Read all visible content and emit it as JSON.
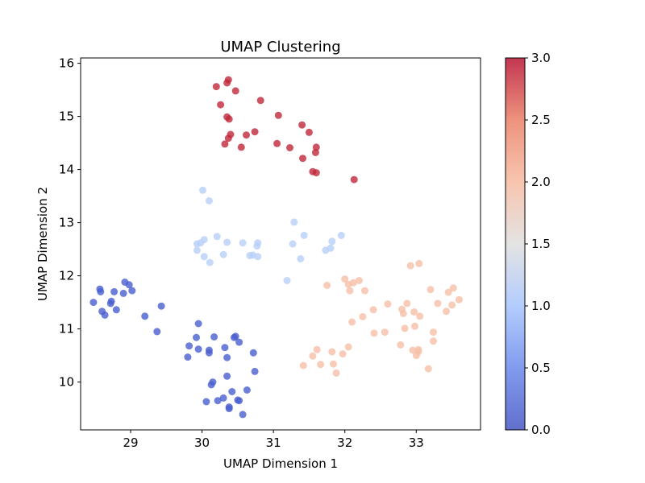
{
  "chart_data": {
    "type": "scatter",
    "title": "UMAP Clustering",
    "xlabel": "UMAP Dimension 1",
    "ylabel": "UMAP Dimension 2",
    "xlim": [
      28.3,
      33.9
    ],
    "ylim": [
      9.1,
      16.1
    ],
    "x_ticks": [
      "29",
      "30",
      "31",
      "32",
      "33"
    ],
    "y_ticks": [
      "10",
      "11",
      "12",
      "13",
      "14",
      "15",
      "16"
    ],
    "grid": false,
    "colormap": "coolwarm",
    "colorbar": {
      "range": [
        0.0,
        3.0
      ],
      "ticks": [
        "0.0",
        "0.5",
        "1.0",
        "1.5",
        "2.0",
        "2.5",
        "3.0"
      ]
    },
    "series": [
      {
        "cluster": 0,
        "color": "#4a5fd0",
        "points": [
          [
            28.48,
            11.5
          ],
          [
            28.57,
            11.75
          ],
          [
            28.58,
            11.7
          ],
          [
            28.6,
            11.33
          ],
          [
            28.64,
            11.26
          ],
          [
            28.72,
            11.48
          ],
          [
            28.73,
            11.52
          ],
          [
            28.77,
            11.7
          ],
          [
            28.8,
            11.36
          ],
          [
            28.9,
            11.67
          ],
          [
            28.92,
            11.88
          ],
          [
            28.98,
            11.83
          ],
          [
            29.02,
            11.72
          ],
          [
            29.2,
            11.24
          ],
          [
            29.37,
            10.95
          ],
          [
            29.43,
            11.43
          ],
          [
            29.82,
            10.68
          ],
          [
            29.8,
            10.47
          ],
          [
            29.92,
            10.84
          ],
          [
            29.95,
            11.1
          ],
          [
            29.95,
            10.62
          ],
          [
            30.1,
            10.6
          ],
          [
            30.1,
            10.55
          ],
          [
            30.17,
            10.85
          ],
          [
            30.32,
            10.65
          ],
          [
            30.35,
            10.46
          ],
          [
            30.45,
            10.84
          ],
          [
            30.47,
            10.86
          ],
          [
            30.52,
            10.75
          ],
          [
            30.72,
            10.55
          ],
          [
            30.74,
            10.2
          ],
          [
            30.13,
            9.95
          ],
          [
            30.15,
            10.0
          ],
          [
            30.35,
            10.11
          ],
          [
            30.06,
            9.63
          ],
          [
            30.22,
            9.65
          ],
          [
            30.3,
            9.7
          ],
          [
            30.38,
            9.53
          ],
          [
            30.38,
            9.5
          ],
          [
            30.42,
            9.82
          ],
          [
            30.5,
            9.66
          ],
          [
            30.52,
            9.65
          ],
          [
            30.57,
            9.39
          ],
          [
            30.63,
            9.85
          ]
        ]
      },
      {
        "cluster": 1,
        "color": "#b8cff8",
        "points": [
          [
            30.01,
            13.61
          ],
          [
            30.1,
            13.41
          ],
          [
            29.93,
            12.6
          ],
          [
            29.93,
            12.48
          ],
          [
            29.98,
            12.62
          ],
          [
            30.03,
            12.68
          ],
          [
            30.03,
            12.36
          ],
          [
            30.11,
            12.25
          ],
          [
            30.21,
            12.74
          ],
          [
            30.3,
            12.4
          ],
          [
            30.35,
            12.63
          ],
          [
            30.57,
            12.62
          ],
          [
            30.67,
            12.38
          ],
          [
            30.71,
            12.39
          ],
          [
            30.77,
            12.56
          ],
          [
            30.78,
            12.62
          ],
          [
            30.78,
            12.36
          ],
          [
            31.19,
            11.91
          ],
          [
            31.27,
            12.6
          ],
          [
            31.29,
            13.01
          ],
          [
            31.38,
            12.32
          ],
          [
            31.43,
            12.76
          ],
          [
            31.73,
            12.48
          ],
          [
            31.8,
            12.52
          ],
          [
            31.82,
            12.65
          ],
          [
            31.95,
            12.76
          ]
        ]
      },
      {
        "cluster": 2,
        "color": "#f6bfa6",
        "points": [
          [
            31.42,
            10.31
          ],
          [
            31.55,
            10.49
          ],
          [
            31.61,
            10.61
          ],
          [
            31.66,
            10.33
          ],
          [
            31.75,
            11.82
          ],
          [
            31.82,
            10.57
          ],
          [
            31.84,
            10.34
          ],
          [
            31.88,
            10.17
          ],
          [
            31.97,
            10.53
          ],
          [
            32.0,
            11.94
          ],
          [
            32.05,
            11.84
          ],
          [
            32.05,
            10.66
          ],
          [
            32.07,
            11.72
          ],
          [
            32.1,
            11.13
          ],
          [
            32.12,
            11.87
          ],
          [
            32.2,
            11.91
          ],
          [
            32.25,
            11.23
          ],
          [
            32.28,
            11.72
          ],
          [
            32.4,
            11.36
          ],
          [
            32.41,
            10.92
          ],
          [
            32.56,
            10.94
          ],
          [
            32.6,
            11.47
          ],
          [
            32.78,
            10.7
          ],
          [
            32.8,
            11.37
          ],
          [
            32.82,
            11.29
          ],
          [
            32.84,
            11.01
          ],
          [
            32.87,
            11.48
          ],
          [
            32.92,
            12.19
          ],
          [
            32.95,
            10.6
          ],
          [
            32.97,
            11.32
          ],
          [
            32.98,
            11.05
          ],
          [
            33.0,
            10.5
          ],
          [
            33.03,
            10.61
          ],
          [
            33.03,
            10.57
          ],
          [
            33.05,
            11.24
          ],
          [
            33.04,
            12.23
          ],
          [
            33.17,
            10.25
          ],
          [
            33.2,
            11.74
          ],
          [
            33.24,
            10.94
          ],
          [
            33.24,
            10.77
          ],
          [
            33.3,
            11.48
          ],
          [
            33.42,
            11.33
          ],
          [
            33.45,
            11.69
          ],
          [
            33.5,
            11.45
          ],
          [
            33.52,
            11.77
          ],
          [
            33.6,
            11.55
          ]
        ]
      },
      {
        "cluster": 3,
        "color": "#c0283b",
        "points": [
          [
            30.2,
            15.56
          ],
          [
            30.26,
            15.22
          ],
          [
            30.32,
            14.48
          ],
          [
            30.35,
            14.99
          ],
          [
            30.35,
            15.63
          ],
          [
            30.37,
            15.69
          ],
          [
            30.37,
            14.59
          ],
          [
            30.38,
            14.95
          ],
          [
            30.4,
            14.66
          ],
          [
            30.47,
            15.48
          ],
          [
            30.55,
            14.42
          ],
          [
            30.62,
            14.65
          ],
          [
            30.74,
            14.71
          ],
          [
            30.82,
            15.3
          ],
          [
            31.05,
            14.49
          ],
          [
            31.07,
            15.02
          ],
          [
            31.23,
            14.41
          ],
          [
            31.4,
            14.84
          ],
          [
            31.41,
            14.21
          ],
          [
            31.5,
            14.7
          ],
          [
            31.55,
            13.96
          ],
          [
            31.6,
            13.94
          ],
          [
            31.59,
            14.32
          ],
          [
            31.6,
            14.42
          ],
          [
            32.13,
            13.81
          ]
        ]
      }
    ]
  }
}
